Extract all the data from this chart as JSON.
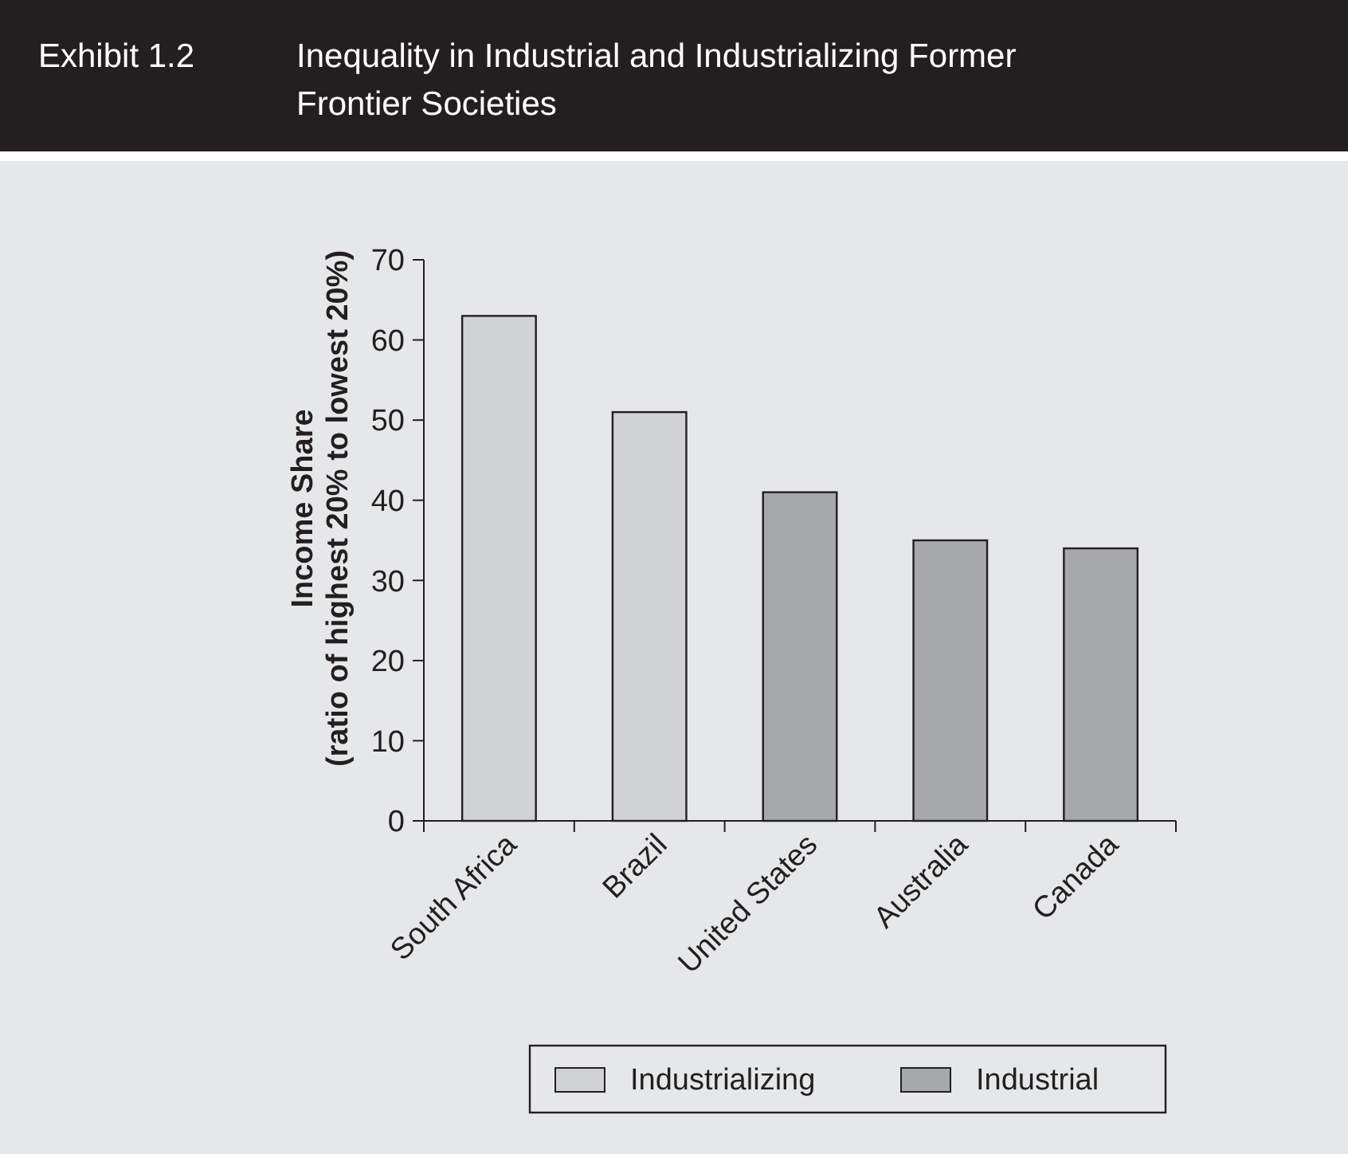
{
  "chart_data": {
    "type": "bar",
    "title": "Inequality in Industrial and Industrializing Former Frontier Societies",
    "annotations": [
      "Exhibit 1.2"
    ],
    "ylabel": "Income Share\n(ratio of highest 20% to lowest 20%)",
    "categories": [
      "South Africa",
      "Brazil",
      "United States",
      "Australia",
      "Canada"
    ],
    "series": [
      {
        "name": "Industrializing",
        "color": "#d1d2d4",
        "values": [
          63,
          51,
          null,
          null,
          null
        ]
      },
      {
        "name": "Industrial",
        "color": "#a7a8ab",
        "values": [
          null,
          null,
          41,
          35,
          34
        ]
      }
    ],
    "ylim": [
      0,
      70
    ],
    "yticks": [
      0,
      10,
      20,
      30,
      40,
      50,
      60,
      70
    ],
    "grid": false,
    "legend": "bottom"
  }
}
